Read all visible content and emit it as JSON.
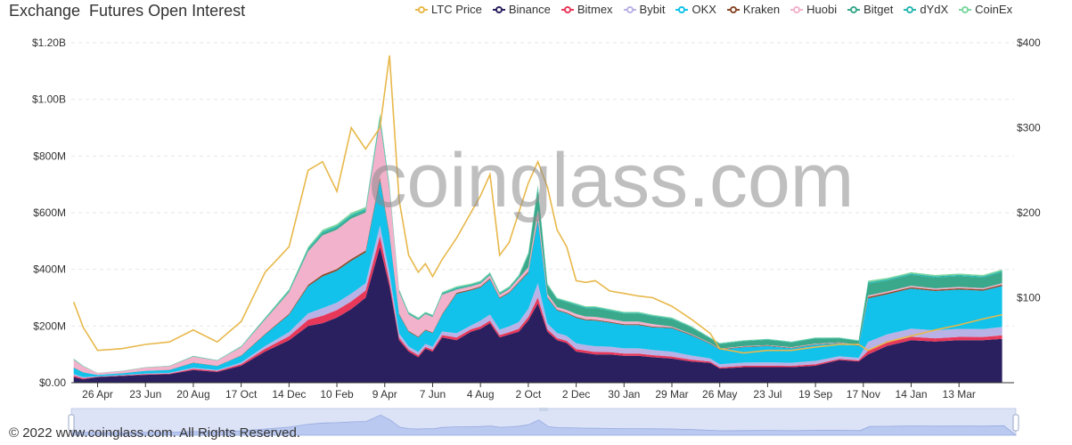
{
  "title": "Exchange  Futures Open Interest",
  "footer": "© 2022 www.coinglass.com. All Rights Reserved.",
  "watermark": "coinglass.com",
  "legend": [
    {
      "name": "LTC Price",
      "color": "#e8b84a"
    },
    {
      "name": "Binance",
      "color": "#2a2060"
    },
    {
      "name": "Bitmex",
      "color": "#e8385a"
    },
    {
      "name": "Bybit",
      "color": "#b9b2e6"
    },
    {
      "name": "OKX",
      "color": "#12c2ea"
    },
    {
      "name": "Kraken",
      "color": "#8a4a2a"
    },
    {
      "name": "Huobi",
      "color": "#f2b2cc"
    },
    {
      "name": "Bitget",
      "color": "#3aa88a"
    },
    {
      "name": "dYdX",
      "color": "#2ab8b0"
    },
    {
      "name": "CoinEx",
      "color": "#7ed6a0"
    }
  ],
  "chart_data": {
    "type": "area",
    "title": "Exchange  Futures Open Interest",
    "stacked": true,
    "x": [
      "26 Apr",
      "23 Jun",
      "20 Aug",
      "17 Oct",
      "14 Dec",
      "10 Feb",
      "9 Apr",
      "7 Jun",
      "4 Aug",
      "2 Oct",
      "2 Dec",
      "30 Jan",
      "29 Mar",
      "26 May",
      "23 Jul",
      "19 Sep",
      "17 Nov",
      "14 Jan",
      "13 Mar"
    ],
    "x_range": [
      -0.55,
      19.15
    ],
    "y_left": {
      "ticks": [
        "$0.00",
        "$200M",
        "$400M",
        "$600M",
        "$800M",
        "$1.00B",
        "$1.20B"
      ],
      "range": [
        0,
        1200000000
      ]
    },
    "y_right": {
      "ticks": [
        "$100",
        "$200",
        "$300",
        "$400"
      ],
      "range": [
        0,
        400
      ]
    },
    "grid": true,
    "legend_position": "top-right",
    "series_keys": [
      "X positions (tick index units) of data points",
      "LTC price (right axis, $)"
    ],
    "points_x": [
      -0.5,
      -0.3,
      0,
      0.5,
      1,
      1.5,
      2,
      2.5,
      3,
      3.5,
      4,
      4.4,
      4.7,
      5,
      5.3,
      5.6,
      5.9,
      6.1,
      6.3,
      6.5,
      6.7,
      6.85,
      7,
      7.2,
      7.5,
      7.8,
      8,
      8.2,
      8.4,
      8.6,
      8.8,
      9,
      9.2,
      9.4,
      9.6,
      9.8,
      10,
      10.2,
      10.4,
      10.7,
      11,
      11.3,
      11.6,
      12,
      12.4,
      12.8,
      13.0,
      13.5,
      14,
      14.5,
      15,
      15.5,
      15.9,
      16.1,
      16.5,
      17,
      17.5,
      18,
      18.5,
      18.9
    ],
    "ltc_price": [
      95,
      65,
      38,
      40,
      45,
      48,
      62,
      48,
      72,
      130,
      160,
      250,
      260,
      225,
      300,
      275,
      300,
      385,
      215,
      150,
      130,
      140,
      125,
      145,
      170,
      200,
      220,
      245,
      150,
      165,
      200,
      235,
      260,
      230,
      180,
      160,
      120,
      118,
      120,
      108,
      105,
      102,
      100,
      90,
      75,
      58,
      40,
      35,
      38,
      38,
      42,
      45,
      45,
      38,
      48,
      55,
      62,
      68,
      75,
      80
    ],
    "binance_oi": [
      20000000,
      12000000,
      20000000,
      24000000,
      28000000,
      30000000,
      45000000,
      38000000,
      60000000,
      110000000,
      150000000,
      200000000,
      210000000,
      230000000,
      260000000,
      300000000,
      480000000,
      340000000,
      150000000,
      110000000,
      90000000,
      120000000,
      110000000,
      160000000,
      150000000,
      180000000,
      190000000,
      210000000,
      160000000,
      170000000,
      180000000,
      220000000,
      280000000,
      180000000,
      150000000,
      140000000,
      110000000,
      105000000,
      100000000,
      100000000,
      95000000,
      95000000,
      90000000,
      85000000,
      75000000,
      70000000,
      50000000,
      55000000,
      55000000,
      55000000,
      60000000,
      80000000,
      75000000,
      100000000,
      130000000,
      150000000,
      145000000,
      150000000,
      150000000,
      155000000
    ],
    "total_oi": [
      85000000,
      60000000,
      35000000,
      42000000,
      55000000,
      60000000,
      95000000,
      80000000,
      130000000,
      230000000,
      330000000,
      480000000,
      540000000,
      560000000,
      600000000,
      620000000,
      950000000,
      700000000,
      330000000,
      250000000,
      230000000,
      250000000,
      240000000,
      320000000,
      340000000,
      350000000,
      360000000,
      390000000,
      320000000,
      340000000,
      380000000,
      460000000,
      700000000,
      350000000,
      300000000,
      290000000,
      280000000,
      270000000,
      270000000,
      260000000,
      250000000,
      250000000,
      240000000,
      230000000,
      200000000,
      160000000,
      140000000,
      150000000,
      155000000,
      145000000,
      160000000,
      160000000,
      150000000,
      360000000,
      370000000,
      390000000,
      380000000,
      385000000,
      380000000,
      400000000
    ]
  }
}
